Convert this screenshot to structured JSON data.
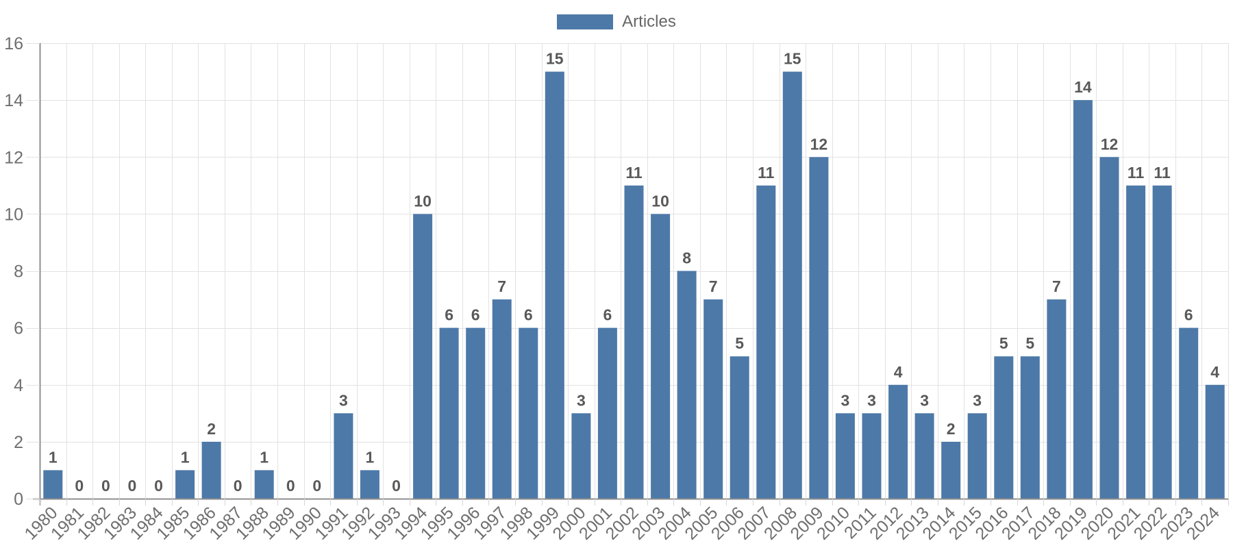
{
  "chart_data": {
    "type": "bar",
    "title": "",
    "categories": [
      "1980",
      "1981",
      "1982",
      "1983",
      "1984",
      "1985",
      "1986",
      "1987",
      "1988",
      "1989",
      "1990",
      "1991",
      "1992",
      "1993",
      "1994",
      "1995",
      "1996",
      "1997",
      "1998",
      "1999",
      "2000",
      "2001",
      "2002",
      "2003",
      "2004",
      "2005",
      "2006",
      "2007",
      "2008",
      "2009",
      "2010",
      "2011",
      "2012",
      "2013",
      "2014",
      "2015",
      "2016",
      "2017",
      "2018",
      "2019",
      "2020",
      "2021",
      "2022",
      "2023",
      "2024"
    ],
    "series": [
      {
        "name": "Articles",
        "values": [
          1,
          0,
          0,
          0,
          0,
          1,
          2,
          0,
          1,
          0,
          0,
          3,
          1,
          0,
          10,
          6,
          6,
          7,
          6,
          15,
          3,
          6,
          11,
          10,
          8,
          7,
          5,
          11,
          15,
          12,
          3,
          3,
          4,
          3,
          2,
          3,
          5,
          5,
          7,
          14,
          12,
          11,
          11,
          6,
          4
        ]
      }
    ],
    "xlabel": "",
    "ylabel": "",
    "ylim": [
      0,
      16
    ],
    "ytick_step": 2,
    "yticks": [
      0,
      2,
      4,
      6,
      8,
      10,
      12,
      14,
      16
    ],
    "grid": true,
    "value_labels_shown": true,
    "legend_position": "top-center",
    "x_label_rotation": -45,
    "colors": {
      "bar": "#4d79a8",
      "grid": "#e2e2e2",
      "minor_tick": "#d6d6d6",
      "axis": "#8f8f8f",
      "tick_label": "#6e6e6e",
      "value_label": "#595959",
      "legend_label": "#666666",
      "background": "#ffffff"
    }
  }
}
